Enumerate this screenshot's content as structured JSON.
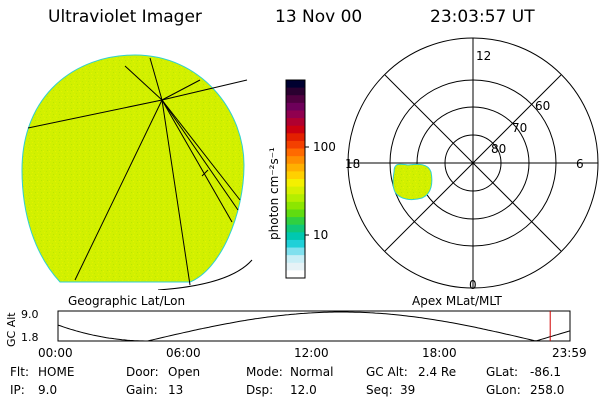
{
  "header": {
    "title": "Ultraviolet Imager",
    "date": "13 Nov 00",
    "time": "23:03:57 UT"
  },
  "colorbar": {
    "unit_label": "photon cm⁻²s⁻¹",
    "ticks": [
      "100",
      "10"
    ],
    "colors": [
      "#000030",
      "#2a0030",
      "#500040",
      "#6e005a",
      "#90004f",
      "#b00030",
      "#cc0010",
      "#e32000",
      "#f44000",
      "#ff6a00",
      "#ff8e00",
      "#ffb000",
      "#ffd000",
      "#f4f000",
      "#d6f000",
      "#b4ee00",
      "#8ce600",
      "#60dc10",
      "#30d040",
      "#10c878",
      "#00c8b0",
      "#20d0d8",
      "#80e0ee",
      "#c8eef6",
      "#e6f2f6",
      "#ffffff"
    ]
  },
  "left_panel": {
    "label": "Geographic Lat/Lon",
    "fill_color": "#d2f000"
  },
  "right_panel": {
    "label": "Apex MLat/MLT",
    "mlt_labels": {
      "top": "12",
      "left": "18",
      "right": "6",
      "bottom": "0"
    },
    "lat_labels": [
      "60",
      "70",
      "80"
    ]
  },
  "timeline": {
    "axis_label": "GC Alt",
    "y_ticks": [
      "9.0",
      "1.8"
    ],
    "x_ticks": [
      "00:00",
      "06:00",
      "12:00",
      "18:00",
      "23:59"
    ],
    "current_marker_hours": 23.07
  },
  "info": {
    "flt_label": "Flt:",
    "flt_value": "HOME",
    "ip_label": "IP:",
    "ip_value": "9.0",
    "door_label": "Door:",
    "door_value": "Open",
    "gain_label": "Gain:",
    "gain_value": "13",
    "mode_label": "Mode:",
    "mode_value": "Normal",
    "dsp_label": "Dsp:",
    "dsp_value": "12.0",
    "gcalt_label": "GC Alt:",
    "gcalt_value": "2.4 Re",
    "seq_label": "Seq:",
    "seq_value": "39",
    "glat_label": "GLat:",
    "glat_value": "-86.1",
    "glon_label": "GLon:",
    "glon_value": "258.0"
  }
}
